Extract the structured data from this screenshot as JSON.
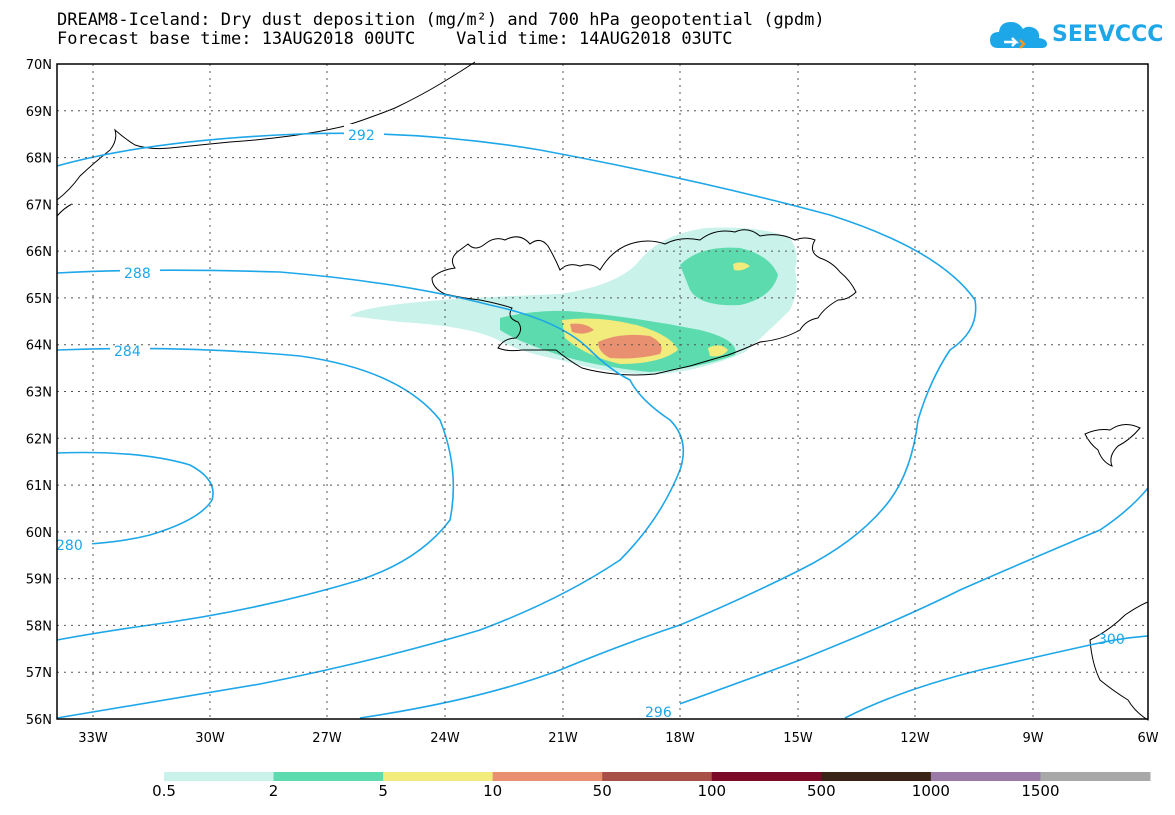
{
  "header": {
    "title_line1": "DREAM8-Iceland: Dry dust deposition (mg/m²) and 700 hPa geopotential (gpdm)",
    "title_line2": "Forecast base time: 13AUG2018 00UTC    Valid time: 14AUG2018 03UTC"
  },
  "logo": {
    "text": "SEEVCCC",
    "icon": "cloud-icon",
    "color": "#1ea7e8"
  },
  "map": {
    "lat_labels": [
      "70N",
      "69N",
      "68N",
      "67N",
      "66N",
      "65N",
      "64N",
      "63N",
      "62N",
      "61N",
      "60N",
      "59N",
      "58N",
      "57N",
      "56N"
    ],
    "lon_labels": [
      "33W",
      "30W",
      "27W",
      "24W",
      "21W",
      "18W",
      "15W",
      "12W",
      "9W",
      "6W"
    ],
    "contour_labels": [
      "292",
      "288",
      "284",
      "280",
      "296",
      "300"
    ],
    "contour_color": "#1ea7e8",
    "coast_color": "#000000"
  },
  "colorbar": {
    "colors": [
      "#c8f2ea",
      "#5cdcae",
      "#f2ec7c",
      "#e89070",
      "#a85048",
      "#7a0a28",
      "#3a2418",
      "#9c7aa8",
      "#a8a8a8"
    ],
    "labels": [
      "0.5",
      "2",
      "5",
      "10",
      "50",
      "100",
      "500",
      "1000",
      "1500"
    ]
  }
}
